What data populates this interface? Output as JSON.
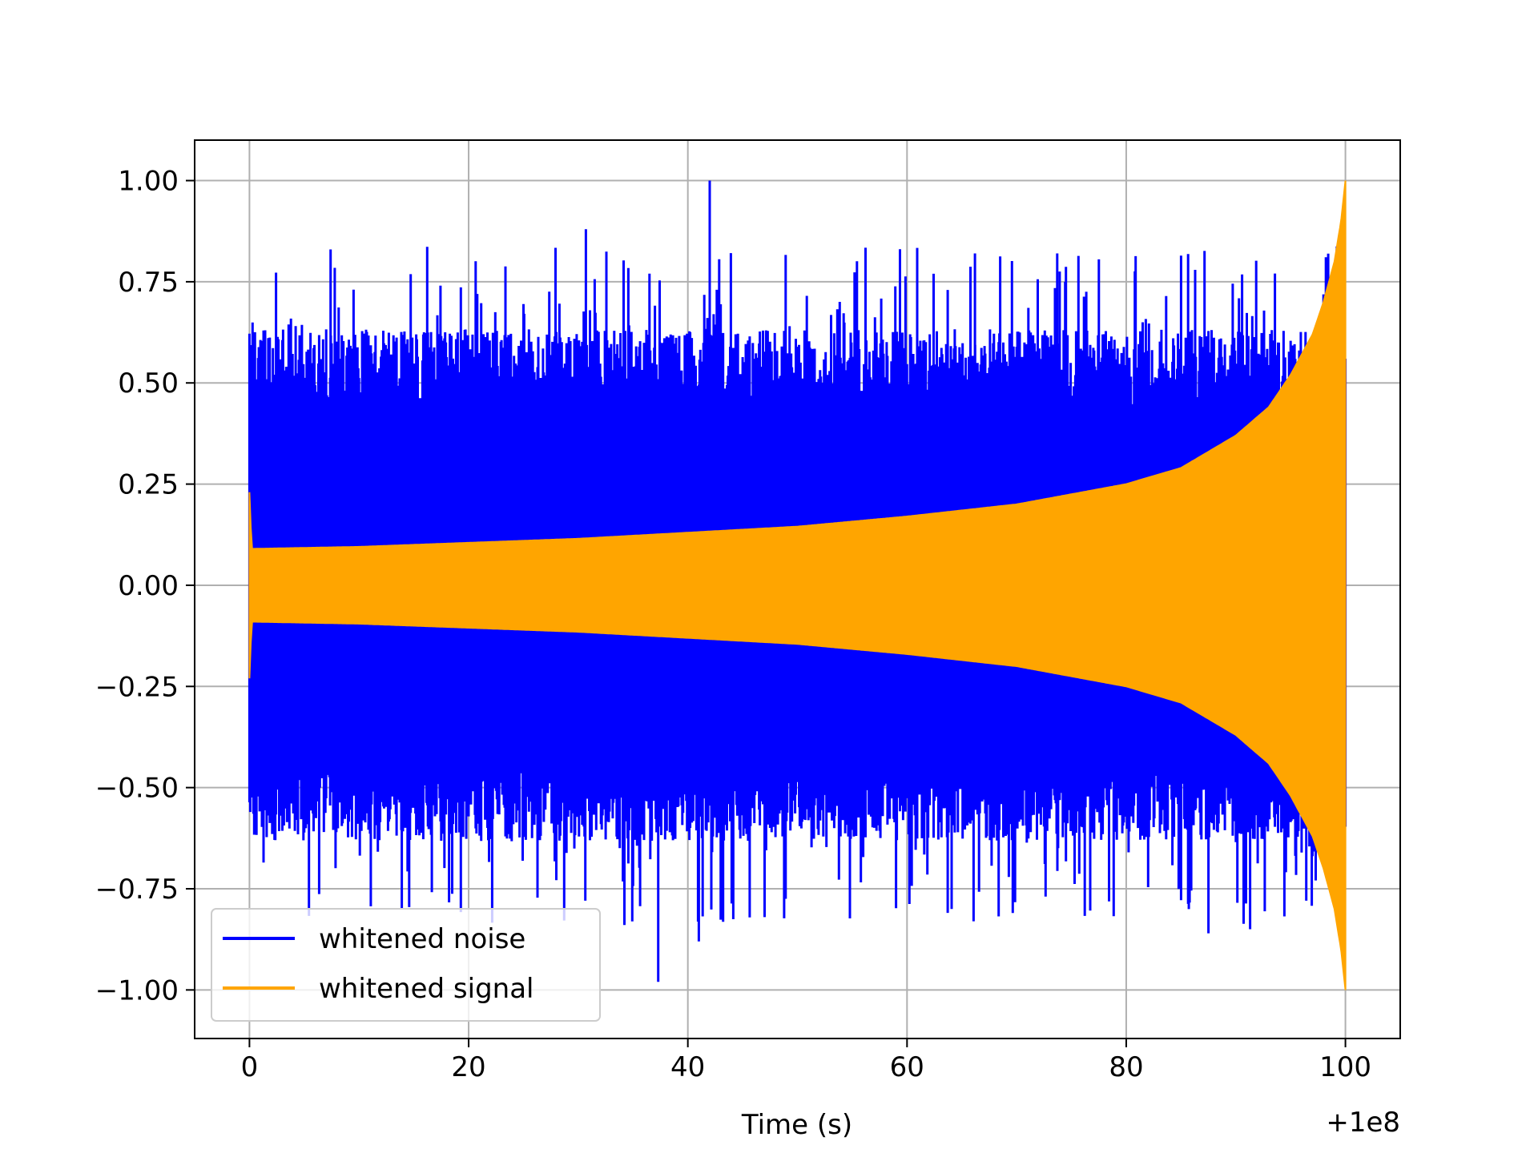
{
  "chart_data": {
    "type": "line",
    "title": "",
    "xlabel": "Time (s)",
    "ylabel": "",
    "x_offset_label": "+1e8",
    "xlim": [
      -5,
      105
    ],
    "ylim": [
      -1.12,
      1.1
    ],
    "xticks": [
      0,
      20,
      40,
      60,
      80,
      100
    ],
    "xtick_labels": [
      "0",
      "20",
      "40",
      "60",
      "80",
      "100"
    ],
    "yticks": [
      -1.0,
      -0.75,
      -0.5,
      -0.25,
      0.0,
      0.25,
      0.5,
      0.75,
      1.0
    ],
    "ytick_labels": [
      "−1.00",
      "−0.75",
      "−0.50",
      "−0.25",
      "0.00",
      "0.25",
      "0.50",
      "0.75",
      "1.00"
    ],
    "grid": true,
    "legend_position": "lower-left",
    "series": [
      {
        "name": "whitened noise",
        "color": "#0000ff",
        "x_range": [
          0,
          100
        ],
        "peak_max": 1.0,
        "peak_min": -0.98,
        "typical_extent": 0.55
      },
      {
        "name": "whitened signal",
        "color": "#ffa500",
        "x": [
          0,
          0.2,
          10,
          20,
          30,
          40,
          50,
          60,
          70,
          80,
          85,
          90,
          93,
          95,
          97,
          98,
          99,
          99.6,
          100
        ],
        "envelope": [
          0.23,
          0.09,
          0.095,
          0.105,
          0.115,
          0.13,
          0.145,
          0.17,
          0.2,
          0.25,
          0.29,
          0.37,
          0.44,
          0.52,
          0.62,
          0.7,
          0.8,
          0.9,
          1.0
        ]
      }
    ]
  }
}
